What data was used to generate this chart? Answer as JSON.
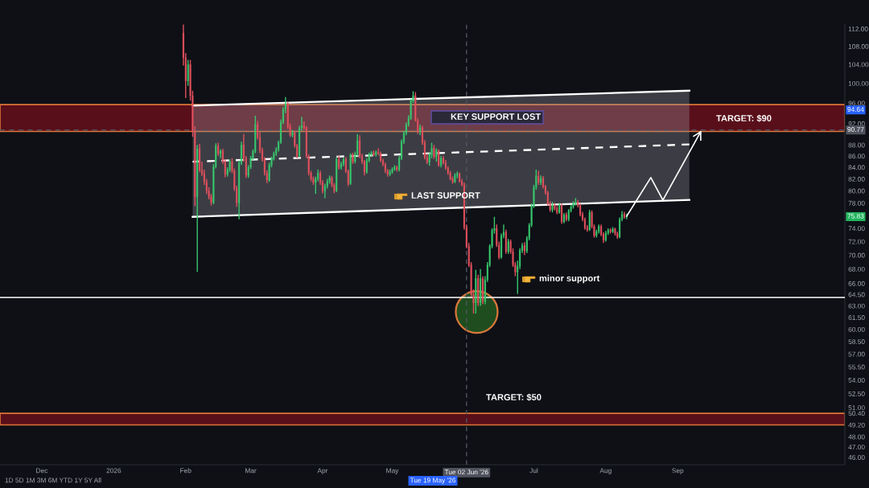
{
  "chart_data": {
    "type": "candlestick",
    "x": [
      "2026-01-31",
      "2026-02-01",
      "2026-02-02",
      "2026-02-03",
      "2026-02-04",
      "2026-02-05",
      "2026-02-06",
      "2026-02-07",
      "2026-02-08",
      "2026-02-09",
      "2026-02-10",
      "2026-02-11",
      "2026-02-12",
      "2026-02-13",
      "2026-02-14",
      "2026-02-15",
      "2026-02-16",
      "2026-02-17",
      "2026-02-18",
      "2026-02-19",
      "2026-02-20",
      "2026-02-21",
      "2026-02-22",
      "2026-02-23",
      "2026-02-24",
      "2026-02-25",
      "2026-02-26",
      "2026-02-27",
      "2026-02-28",
      "2026-03-01",
      "2026-03-02",
      "2026-03-03",
      "2026-03-04",
      "2026-03-05",
      "2026-03-06",
      "2026-03-07",
      "2026-03-08",
      "2026-03-09",
      "2026-03-10",
      "2026-03-11",
      "2026-03-12",
      "2026-03-13",
      "2026-03-14",
      "2026-03-15",
      "2026-03-16",
      "2026-03-17",
      "2026-03-18",
      "2026-03-19",
      "2026-03-20",
      "2026-03-21",
      "2026-03-22",
      "2026-03-23",
      "2026-03-24",
      "2026-03-25",
      "2026-03-26",
      "2026-03-27",
      "2026-03-28",
      "2026-03-29",
      "2026-03-30",
      "2026-03-31",
      "2026-04-01",
      "2026-04-02",
      "2026-04-03",
      "2026-04-04",
      "2026-04-05",
      "2026-04-06",
      "2026-04-07",
      "2026-04-08",
      "2026-04-09",
      "2026-04-10",
      "2026-04-11",
      "2026-04-12",
      "2026-04-13",
      "2026-04-14",
      "2026-04-15",
      "2026-04-16",
      "2026-04-17",
      "2026-04-18",
      "2026-04-19",
      "2026-04-20",
      "2026-04-21",
      "2026-04-22",
      "2026-04-23",
      "2026-04-24",
      "2026-04-25",
      "2026-04-26",
      "2026-04-27",
      "2026-04-28",
      "2026-04-29",
      "2026-04-30",
      "2026-05-01",
      "2026-05-02",
      "2026-05-03",
      "2026-05-04",
      "2026-05-05",
      "2026-05-06",
      "2026-05-07",
      "2026-05-08",
      "2026-05-09",
      "2026-05-10",
      "2026-05-11",
      "2026-05-12",
      "2026-05-13",
      "2026-05-14",
      "2026-05-15",
      "2026-05-16",
      "2026-05-17",
      "2026-05-18",
      "2026-05-19",
      "2026-05-20",
      "2026-05-21",
      "2026-05-22",
      "2026-05-23",
      "2026-05-24",
      "2026-05-25",
      "2026-05-26",
      "2026-05-27",
      "2026-05-28",
      "2026-05-29",
      "2026-05-30",
      "2026-05-31",
      "2026-06-01",
      "2026-06-02",
      "2026-06-03",
      "2026-06-04",
      "2026-06-05",
      "2026-06-06",
      "2026-06-07",
      "2026-06-08",
      "2026-06-09",
      "2026-06-10",
      "2026-06-11",
      "2026-06-12",
      "2026-06-13",
      "2026-06-14",
      "2026-06-15",
      "2026-06-16",
      "2026-06-17",
      "2026-06-18",
      "2026-06-19",
      "2026-06-20",
      "2026-06-21",
      "2026-06-22",
      "2026-06-23",
      "2026-06-24",
      "2026-06-25",
      "2026-06-26",
      "2026-06-27",
      "2026-06-28",
      "2026-06-29",
      "2026-06-30",
      "2026-07-01",
      "2026-07-02",
      "2026-07-03",
      "2026-07-04",
      "2026-07-05",
      "2026-07-06",
      "2026-07-07",
      "2026-07-08",
      "2026-07-09",
      "2026-07-10",
      "2026-07-11",
      "2026-07-12",
      "2026-07-13",
      "2026-07-14",
      "2026-07-15",
      "2026-07-16",
      "2026-07-17",
      "2026-07-18",
      "2026-07-19",
      "2026-07-20",
      "2026-07-21",
      "2026-07-22",
      "2026-07-23",
      "2026-07-24",
      "2026-07-25",
      "2026-07-26",
      "2026-07-27",
      "2026-07-28",
      "2026-07-29",
      "2026-07-30",
      "2026-07-31",
      "2026-08-01",
      "2026-08-02",
      "2026-08-03",
      "2026-08-04",
      "2026-08-05",
      "2026-08-06",
      "2026-08-07",
      "2026-08-08",
      "2026-08-09",
      "2026-08-10"
    ],
    "ohlc": [
      [
        111.0,
        113.0,
        103.8,
        105.5
      ],
      [
        105.5,
        106.5,
        97.0,
        100.5
      ],
      [
        100.5,
        105.0,
        99.5,
        104.0
      ],
      [
        104.0,
        105.0,
        96.5,
        97.5
      ],
      [
        97.5,
        98.5,
        89.5,
        90.5
      ],
      [
        90.5,
        91.5,
        77.5,
        79.0
      ],
      [
        79.0,
        88.0,
        67.6,
        87.3
      ],
      [
        87.3,
        88.2,
        83.2,
        83.5
      ],
      [
        83.5,
        85.0,
        82.5,
        82.9
      ],
      [
        82.9,
        83.6,
        81.0,
        81.5
      ],
      [
        81.5,
        82.0,
        79.5,
        80.0
      ],
      [
        80.0,
        80.6,
        78.6,
        79.0
      ],
      [
        79.0,
        79.5,
        77.6,
        78.1
      ],
      [
        78.1,
        84.6,
        77.8,
        84.1
      ],
      [
        84.1,
        88.3,
        83.8,
        87.8
      ],
      [
        87.8,
        88.4,
        86.0,
        86.4
      ],
      [
        86.4,
        87.2,
        85.6,
        86.9
      ],
      [
        86.9,
        87.3,
        84.6,
        85.0
      ],
      [
        85.0,
        85.4,
        82.3,
        82.8
      ],
      [
        82.8,
        84.0,
        82.4,
        83.6
      ],
      [
        83.6,
        85.4,
        83.2,
        85.0
      ],
      [
        85.0,
        85.6,
        83.0,
        83.4
      ],
      [
        83.4,
        83.8,
        80.0,
        80.4
      ],
      [
        80.4,
        80.9,
        77.4,
        78.0
      ],
      [
        78.0,
        85.2,
        75.4,
        84.8
      ],
      [
        84.8,
        88.6,
        84.4,
        88.0
      ],
      [
        88.0,
        90.0,
        85.0,
        85.6
      ],
      [
        85.6,
        86.0,
        82.2,
        82.6
      ],
      [
        82.6,
        84.4,
        82.2,
        84.0
      ],
      [
        84.0,
        86.0,
        83.7,
        85.6
      ],
      [
        85.6,
        87.2,
        85.3,
        86.8
      ],
      [
        86.8,
        93.5,
        86.5,
        91.8
      ],
      [
        91.8,
        92.5,
        89.0,
        89.4
      ],
      [
        89.4,
        90.4,
        86.5,
        87.0
      ],
      [
        87.0,
        87.5,
        85.0,
        85.4
      ],
      [
        85.4,
        85.8,
        82.6,
        83.0
      ],
      [
        83.0,
        83.5,
        81.3,
        81.8
      ],
      [
        81.8,
        84.8,
        81.5,
        84.4
      ],
      [
        84.4,
        85.9,
        84.0,
        85.5
      ],
      [
        85.5,
        86.8,
        85.2,
        86.4
      ],
      [
        86.4,
        87.6,
        86.0,
        87.2
      ],
      [
        87.2,
        88.8,
        86.8,
        88.5
      ],
      [
        88.5,
        92.8,
        88.2,
        92.2
      ],
      [
        92.2,
        95.2,
        91.9,
        94.8
      ],
      [
        94.8,
        97.2,
        94.0,
        95.8
      ],
      [
        95.8,
        96.2,
        91.0,
        91.4
      ],
      [
        91.4,
        92.0,
        89.5,
        89.8
      ],
      [
        89.8,
        90.8,
        89.4,
        90.3
      ],
      [
        90.3,
        90.6,
        87.5,
        87.9
      ],
      [
        87.9,
        88.2,
        85.6,
        86.0
      ],
      [
        86.0,
        91.6,
        85.8,
        91.2
      ],
      [
        91.2,
        93.3,
        90.6,
        91.6
      ],
      [
        91.6,
        92.4,
        90.8,
        91.2
      ],
      [
        91.2,
        91.5,
        85.6,
        86.0
      ],
      [
        86.0,
        86.3,
        82.6,
        83.0
      ],
      [
        83.0,
        83.4,
        81.6,
        82.0
      ],
      [
        82.0,
        82.4,
        81.0,
        81.4
      ],
      [
        81.4,
        82.4,
        79.5,
        82.0
      ],
      [
        82.0,
        83.6,
        81.6,
        83.0
      ],
      [
        83.0,
        83.4,
        81.0,
        81.4
      ],
      [
        81.4,
        81.8,
        79.6,
        80.0
      ],
      [
        80.0,
        81.2,
        78.8,
        80.8
      ],
      [
        80.8,
        82.0,
        80.4,
        81.6
      ],
      [
        81.6,
        82.6,
        81.2,
        82.2
      ],
      [
        82.2,
        82.5,
        80.6,
        81.0
      ],
      [
        81.0,
        81.3,
        79.6,
        80.0
      ],
      [
        80.0,
        85.8,
        79.8,
        85.4
      ],
      [
        85.4,
        86.0,
        83.6,
        84.0
      ],
      [
        84.0,
        85.0,
        83.6,
        84.6
      ],
      [
        84.6,
        85.8,
        84.2,
        85.4
      ],
      [
        85.4,
        85.8,
        83.0,
        83.3
      ],
      [
        83.3,
        83.6,
        80.8,
        81.2
      ],
      [
        81.2,
        86.5,
        81.0,
        86.2
      ],
      [
        86.2,
        86.6,
        84.6,
        85.0
      ],
      [
        85.0,
        86.8,
        84.7,
        86.4
      ],
      [
        86.4,
        90.0,
        86.0,
        88.8
      ],
      [
        88.8,
        89.8,
        85.6,
        86.0
      ],
      [
        86.0,
        86.4,
        84.6,
        85.0
      ],
      [
        85.0,
        85.3,
        82.6,
        83.2
      ],
      [
        83.2,
        85.6,
        82.9,
        85.2
      ],
      [
        85.2,
        86.6,
        84.9,
        86.3
      ],
      [
        86.3,
        86.9,
        86.0,
        86.6
      ],
      [
        86.6,
        87.0,
        86.0,
        86.2
      ],
      [
        86.2,
        87.0,
        85.9,
        86.7
      ],
      [
        86.7,
        87.4,
        86.2,
        86.4
      ],
      [
        86.4,
        86.8,
        84.9,
        85.2
      ],
      [
        85.2,
        85.5,
        84.2,
        84.5
      ],
      [
        84.5,
        84.8,
        83.0,
        83.4
      ],
      [
        83.4,
        83.7,
        82.4,
        82.8
      ],
      [
        82.8,
        83.6,
        82.5,
        83.2
      ],
      [
        83.2,
        84.0,
        82.9,
        83.7
      ],
      [
        83.7,
        84.4,
        83.4,
        84.0
      ],
      [
        84.0,
        84.3,
        83.3,
        83.6
      ],
      [
        83.6,
        86.0,
        83.3,
        85.6
      ],
      [
        85.6,
        89.0,
        85.3,
        88.6
      ],
      [
        88.6,
        90.6,
        88.2,
        90.2
      ],
      [
        90.2,
        92.2,
        89.8,
        91.8
      ],
      [
        91.8,
        93.6,
        91.4,
        93.0
      ],
      [
        93.0,
        96.8,
        92.7,
        96.4
      ],
      [
        96.4,
        98.4,
        96.0,
        97.5
      ],
      [
        97.5,
        98.2,
        92.4,
        92.6
      ],
      [
        92.6,
        93.0,
        90.0,
        90.6
      ],
      [
        90.6,
        91.8,
        89.8,
        91.2
      ],
      [
        91.2,
        91.6,
        88.0,
        88.4
      ],
      [
        88.4,
        88.9,
        85.4,
        85.7
      ],
      [
        85.7,
        86.4,
        84.6,
        84.9
      ],
      [
        84.9,
        86.6,
        84.3,
        86.2
      ],
      [
        86.2,
        88.4,
        85.6,
        87.4
      ],
      [
        87.4,
        88.0,
        85.5,
        85.9
      ],
      [
        85.9,
        87.4,
        85.0,
        87.0
      ],
      [
        87.0,
        87.2,
        84.1,
        84.4
      ],
      [
        84.4,
        86.0,
        84.0,
        85.6
      ],
      [
        85.6,
        86.0,
        84.5,
        84.8
      ],
      [
        84.8,
        85.3,
        83.6,
        83.9
      ],
      [
        83.9,
        84.2,
        82.7,
        83.0
      ],
      [
        83.0,
        83.4,
        81.8,
        82.0
      ],
      [
        82.0,
        82.4,
        81.2,
        81.5
      ],
      [
        81.5,
        83.0,
        81.3,
        82.6
      ],
      [
        82.6,
        83.3,
        82.1,
        82.9
      ],
      [
        82.9,
        83.1,
        81.4,
        81.6
      ],
      [
        81.6,
        82.0,
        80.8,
        81.0
      ],
      [
        81.0,
        81.4,
        73.8,
        74.1
      ],
      [
        74.1,
        74.6,
        71.0,
        71.3
      ],
      [
        71.3,
        71.8,
        68.3,
        68.6
      ],
      [
        68.6,
        69.0,
        64.2,
        64.5
      ],
      [
        64.5,
        65.2,
        62.0,
        63.4
      ],
      [
        63.4,
        67.9,
        62.0,
        66.7
      ],
      [
        66.7,
        67.2,
        63.0,
        63.4
      ],
      [
        63.4,
        68.0,
        63.0,
        66.7
      ],
      [
        66.7,
        67.0,
        63.2,
        63.6
      ],
      [
        63.6,
        67.0,
        63.2,
        66.5
      ],
      [
        66.5,
        69.0,
        66.2,
        68.6
      ],
      [
        68.6,
        71.6,
        68.3,
        71.3
      ],
      [
        71.3,
        74.0,
        71.0,
        73.7
      ],
      [
        73.7,
        75.8,
        73.2,
        74.0
      ],
      [
        74.0,
        74.6,
        71.2,
        71.5
      ],
      [
        71.5,
        72.0,
        69.4,
        69.7
      ],
      [
        69.7,
        73.2,
        69.5,
        72.9
      ],
      [
        72.9,
        74.6,
        72.5,
        73.4
      ],
      [
        73.4,
        73.8,
        70.2,
        70.5
      ],
      [
        70.5,
        72.4,
        70.2,
        72.0
      ],
      [
        72.0,
        72.3,
        70.2,
        70.5
      ],
      [
        70.5,
        71.0,
        68.3,
        68.6
      ],
      [
        68.6,
        69.0,
        67.0,
        67.6
      ],
      [
        67.6,
        69.2,
        64.6,
        68.4
      ],
      [
        68.4,
        71.0,
        68.0,
        70.7
      ],
      [
        70.7,
        71.8,
        70.3,
        71.4
      ],
      [
        71.4,
        71.9,
        70.0,
        70.6
      ],
      [
        70.6,
        72.8,
        70.3,
        72.5
      ],
      [
        72.5,
        74.8,
        72.2,
        74.5
      ],
      [
        74.5,
        77.9,
        74.2,
        77.5
      ],
      [
        77.5,
        81.0,
        77.2,
        80.6
      ],
      [
        80.6,
        83.6,
        80.2,
        82.5
      ],
      [
        82.5,
        83.4,
        81.0,
        81.4
      ],
      [
        81.4,
        82.6,
        81.0,
        82.1
      ],
      [
        82.1,
        82.5,
        80.4,
        80.7
      ],
      [
        80.7,
        81.0,
        79.4,
        79.7
      ],
      [
        79.7,
        80.0,
        77.6,
        77.9
      ],
      [
        77.9,
        78.3,
        76.6,
        76.9
      ],
      [
        76.9,
        78.2,
        76.5,
        77.6
      ],
      [
        77.6,
        78.0,
        76.8,
        77.1
      ],
      [
        77.1,
        77.5,
        76.2,
        76.5
      ],
      [
        76.5,
        78.0,
        76.3,
        77.6
      ],
      [
        77.6,
        77.9,
        74.7,
        75.0
      ],
      [
        75.0,
        76.4,
        74.8,
        76.1
      ],
      [
        76.1,
        76.5,
        75.1,
        75.4
      ],
      [
        75.4,
        77.0,
        75.1,
        76.8
      ],
      [
        76.8,
        77.7,
        76.5,
        77.4
      ],
      [
        77.4,
        78.3,
        77.1,
        77.9
      ],
      [
        77.9,
        78.8,
        77.6,
        78.2
      ],
      [
        78.2,
        78.5,
        77.3,
        77.6
      ],
      [
        77.6,
        77.9,
        75.9,
        76.2
      ],
      [
        76.2,
        76.6,
        75.1,
        75.4
      ],
      [
        75.4,
        75.7,
        73.8,
        74.1
      ],
      [
        74.1,
        74.5,
        73.5,
        73.8
      ],
      [
        73.8,
        76.9,
        73.6,
        76.5
      ],
      [
        76.5,
        76.8,
        74.0,
        74.3
      ],
      [
        74.3,
        74.6,
        72.6,
        72.9
      ],
      [
        72.9,
        73.8,
        72.6,
        73.5
      ],
      [
        73.5,
        74.6,
        73.2,
        74.3
      ],
      [
        74.3,
        74.6,
        72.8,
        73.1
      ],
      [
        73.1,
        73.4,
        71.8,
        72.2
      ],
      [
        72.2,
        73.6,
        72.0,
        73.3
      ],
      [
        73.3,
        74.0,
        73.0,
        73.7
      ],
      [
        73.7,
        74.0,
        73.2,
        73.5
      ],
      [
        73.5,
        74.2,
        73.3,
        73.9
      ],
      [
        73.9,
        74.1,
        72.9,
        73.2
      ],
      [
        73.2,
        73.5,
        72.4,
        72.7
      ],
      [
        72.7,
        75.7,
        72.5,
        75.4
      ],
      [
        75.4,
        76.7,
        75.1,
        76.2
      ],
      [
        76.2,
        76.6,
        75.5,
        75.8
      ],
      [
        75.8,
        76.3,
        75.4,
        75.9
      ]
    ],
    "colors": [
      "#e2505d",
      "#e2505d",
      "#38c76d",
      "#e2505d",
      "#e2505d",
      "#e2505d",
      "#38c76d",
      "#e2505d",
      "#e2505d",
      "#e2505d",
      "#e2505d",
      "#e2505d",
      "#e2505d",
      "#38c76d",
      "#38c76d",
      "#e2505d",
      "#38c76d",
      "#e2505d",
      "#e2505d",
      "#38c76d",
      "#38c76d",
      "#e2505d",
      "#e2505d",
      "#e2505d",
      "#38c76d",
      "#38c76d",
      "#e2505d",
      "#e2505d",
      "#38c76d",
      "#38c76d",
      "#38c76d",
      "#38c76d",
      "#e2505d",
      "#e2505d",
      "#e2505d",
      "#e2505d",
      "#e2505d",
      "#38c76d",
      "#38c76d",
      "#38c76d",
      "#38c76d",
      "#38c76d",
      "#38c76d",
      "#38c76d",
      "#38c76d",
      "#e2505d",
      "#e2505d",
      "#38c76d",
      "#e2505d",
      "#e2505d",
      "#38c76d",
      "#38c76d",
      "#e2505d",
      "#e2505d",
      "#e2505d",
      "#e2505d",
      "#e2505d",
      "#38c76d",
      "#38c76d",
      "#e2505d",
      "#e2505d",
      "#38c76d",
      "#38c76d",
      "#38c76d",
      "#e2505d",
      "#e2505d",
      "#38c76d",
      "#e2505d",
      "#38c76d",
      "#38c76d",
      "#e2505d",
      "#e2505d",
      "#38c76d",
      "#e2505d",
      "#38c76d",
      "#38c76d",
      "#e2505d",
      "#e2505d",
      "#e2505d",
      "#38c76d",
      "#38c76d",
      "#38c76d",
      "#e2505d",
      "#38c76d",
      "#e2505d",
      "#e2505d",
      "#e2505d",
      "#e2505d",
      "#e2505d",
      "#38c76d",
      "#38c76d",
      "#38c76d",
      "#e2505d",
      "#38c76d",
      "#38c76d",
      "#38c76d",
      "#38c76d",
      "#38c76d",
      "#38c76d",
      "#38c76d",
      "#e2505d",
      "#e2505d",
      "#38c76d",
      "#e2505d",
      "#e2505d",
      "#e2505d",
      "#38c76d",
      "#38c76d",
      "#e2505d",
      "#38c76d",
      "#e2505d",
      "#38c76d",
      "#e2505d",
      "#e2505d",
      "#e2505d",
      "#e2505d",
      "#e2505d",
      "#38c76d",
      "#38c76d",
      "#e2505d",
      "#e2505d",
      "#e2505d",
      "#e2505d",
      "#e2505d",
      "#e2505d",
      "#e2505d",
      "#38c76d",
      "#e2505d",
      "#38c76d",
      "#e2505d",
      "#38c76d",
      "#38c76d",
      "#38c76d",
      "#38c76d",
      "#38c76d",
      "#e2505d",
      "#e2505d",
      "#38c76d",
      "#38c76d",
      "#e2505d",
      "#38c76d",
      "#e2505d",
      "#e2505d",
      "#e2505d",
      "#38c76d",
      "#38c76d",
      "#38c76d",
      "#e2505d",
      "#38c76d",
      "#38c76d",
      "#38c76d",
      "#38c76d",
      "#38c76d",
      "#e2505d",
      "#38c76d",
      "#e2505d",
      "#e2505d",
      "#e2505d",
      "#e2505d",
      "#38c76d",
      "#e2505d",
      "#e2505d",
      "#38c76d",
      "#e2505d",
      "#38c76d",
      "#e2505d",
      "#38c76d",
      "#38c76d",
      "#38c76d",
      "#38c76d",
      "#e2505d",
      "#e2505d",
      "#e2505d",
      "#e2505d",
      "#e2505d",
      "#38c76d",
      "#e2505d",
      "#e2505d",
      "#38c76d",
      "#38c76d",
      "#e2505d",
      "#e2505d",
      "#38c76d",
      "#38c76d",
      "#e2505d",
      "#38c76d",
      "#e2505d",
      "#e2505d",
      "#38c76d",
      "#38c76d",
      "#e2505d",
      "#38c76d"
    ],
    "log": true,
    "ylim": [
      45.3,
      113.1
    ],
    "yticks": [
      {
        "value": 112,
        "label": "112.00"
      },
      {
        "value": 108,
        "label": "108.00"
      },
      {
        "value": 104,
        "label": "104.00"
      },
      {
        "value": 100,
        "label": "100.00"
      },
      {
        "value": 96,
        "label": "96.00"
      },
      {
        "value": 92,
        "label": "92.00"
      },
      {
        "value": 88,
        "label": "88.00"
      },
      {
        "value": 86,
        "label": "86.00"
      },
      {
        "value": 84,
        "label": "84.00"
      },
      {
        "value": 82,
        "label": "82.00"
      },
      {
        "value": 80,
        "label": "80.00"
      },
      {
        "value": 78,
        "label": "78.00"
      },
      {
        "value": 74,
        "label": "74.00"
      },
      {
        "value": 72,
        "label": "72.00"
      },
      {
        "value": 70,
        "label": "70.00"
      },
      {
        "value": 68,
        "label": "68.00"
      },
      {
        "value": 66,
        "label": "66.00"
      },
      {
        "value": 64.5,
        "label": "64.50"
      },
      {
        "value": 63,
        "label": "63.00"
      },
      {
        "value": 61.5,
        "label": "61.50"
      },
      {
        "value": 60,
        "label": "60.00"
      },
      {
        "value": 58.5,
        "label": "58.50"
      },
      {
        "value": 57,
        "label": "57.00"
      },
      {
        "value": 55.5,
        "label": "55.50"
      },
      {
        "value": 54,
        "label": "54.00"
      },
      {
        "value": 52.5,
        "label": "52.50"
      },
      {
        "value": 51,
        "label": "51.00"
      },
      {
        "value": 50.4,
        "label": "50.40"
      },
      {
        "value": 49.2,
        "label": "49.20"
      },
      {
        "value": 48,
        "label": "48.00"
      },
      {
        "value": 47,
        "label": "47.00"
      },
      {
        "value": 46,
        "label": "46.00"
      }
    ],
    "xlim": [
      "2025-11-13",
      "2026-11-12"
    ],
    "xticks": [
      {
        "value": "2025-12-01",
        "label": "Dec"
      },
      {
        "value": "2026-01-01",
        "label": "2026"
      },
      {
        "value": "2026-02-01",
        "label": "Feb"
      },
      {
        "value": "2026-03-01",
        "label": "Mar"
      },
      {
        "value": "2026-04-01",
        "label": "Apr"
      },
      {
        "value": "2026-05-01",
        "label": "May"
      },
      {
        "value": "2026-07-01",
        "label": "Jul"
      },
      {
        "value": "2026-08-01",
        "label": "Aug"
      },
      {
        "value": "2026-09-01",
        "label": "Sep"
      }
    ],
    "series": [
      {
        "type": "line",
        "x": [
          "2026-02-04",
          "2026-09-06"
        ],
        "values": [
          95.5,
          98.5
        ],
        "color": "#ffffff",
        "line_style": "solid"
      },
      {
        "type": "line",
        "x": [
          "2026-02-04",
          "2026-09-06"
        ],
        "values": [
          75.8,
          78.5
        ],
        "color": "#ffffff",
        "line_style": "solid"
      },
      {
        "type": "line",
        "x": [
          "2026-02-04",
          "2026-09-06"
        ],
        "values": [
          85.0,
          88.1
        ],
        "lower": [
          75.8,
          78.5
        ],
        "upper": [
          95.5,
          98.5
        ],
        "color": "#ffffff",
        "line_style": "dashed"
      }
    ],
    "bands": [
      {
        "axis": "y",
        "from": 90.5,
        "to": 95.7,
        "color": "#6e0f1c"
      },
      {
        "axis": "y",
        "from": 49.2,
        "to": 50.4,
        "color": "#6e0f1c"
      }
    ],
    "ref_lines": [
      {
        "axis": "y",
        "value": 64.1,
        "color": "#ffffff",
        "line_style": "solid"
      },
      {
        "axis": "y",
        "value": 90.77,
        "label": "90.77",
        "color": "#50535e",
        "line_style": "dashed"
      },
      {
        "axis": "x",
        "value": "2026-06-02",
        "label": "Tue 02 Jun '26",
        "color": "#50535e",
        "line_style": "dashed"
      }
    ],
    "annotations": [
      "KEY SUPPORT LOST",
      "LAST SUPPORT",
      "minor support",
      "TARGET: $90",
      "TARGET: $50",
      "Tue 19 May '26",
      "1D 5D 1M 3M 6M YTD 1Y 5Y All",
      {
        "text": "94.64",
        "y": 94.64
      },
      {
        "text": "75.83",
        "y": 75.83
      }
    ]
  }
}
